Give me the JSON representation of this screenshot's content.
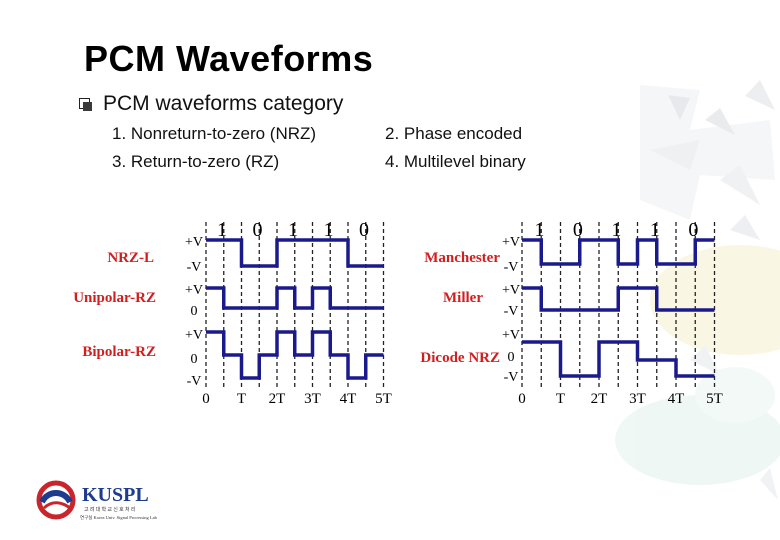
{
  "title": "PCM Waveforms",
  "bullet": "PCM waveforms category",
  "categories": [
    "1. Nonreturn-to-zero (NRZ)",
    "2. Phase encoded",
    "3. Return-to-zero (RZ)",
    "4. Multilevel binary"
  ],
  "figure": {
    "bits": [
      "1",
      "0",
      "1",
      "1",
      "0"
    ],
    "time_labels": [
      "0",
      "T",
      "2T",
      "3T",
      "4T",
      "5T"
    ],
    "left_waveforms": [
      {
        "name": "NRZ-L",
        "levels": [
          "+V",
          "-V"
        ]
      },
      {
        "name": "Unipolar-RZ",
        "levels": [
          "+V",
          "0"
        ]
      },
      {
        "name": "Bipolar-RZ",
        "levels": [
          "+V",
          "0",
          "-V"
        ]
      }
    ],
    "right_waveforms": [
      {
        "name": "Manchester",
        "levels": [
          "+V",
          "-V"
        ]
      },
      {
        "name": "Miller",
        "levels": [
          "+V",
          "-V"
        ]
      },
      {
        "name": "Dicode NRZ",
        "levels": [
          "+V",
          "0",
          "-V"
        ]
      }
    ],
    "label_color": "#d21e1e",
    "wave_color": "#1a1a8c"
  },
  "logo": {
    "text": "KUSPL",
    "subtitle_line1": "고 려 대 학 교  신 호 처 리",
    "subtitle_line2": "연구실 Korea Univ. Signal Processing Lab"
  }
}
